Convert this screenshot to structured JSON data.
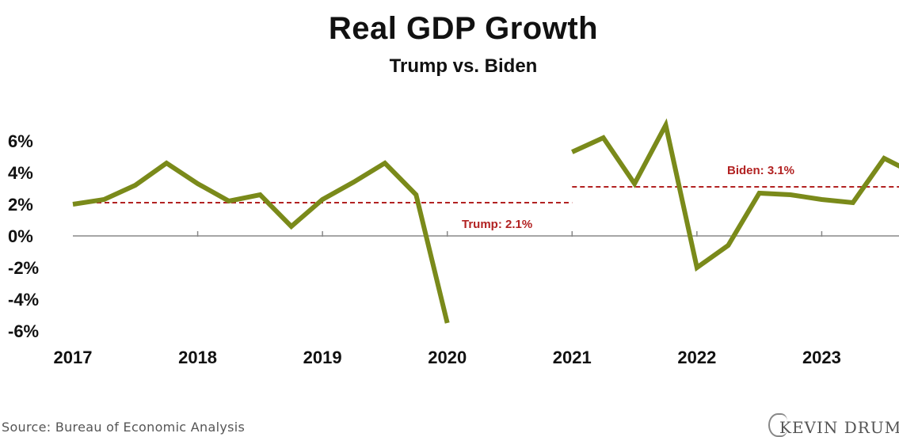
{
  "chart_data": {
    "type": "line",
    "title": "Real GDP Growth",
    "subtitle": "Trump vs. Biden",
    "xlabel": "",
    "ylabel": "",
    "x_ticks": [
      "2017",
      "2018",
      "2019",
      "2020",
      "2021",
      "2022",
      "2023"
    ],
    "y_ticks": [
      "6%",
      "4%",
      "2%",
      "0%",
      "-2%",
      "-4%",
      "-6%"
    ],
    "ylim": [
      -6,
      6
    ],
    "xlim": [
      2017,
      2024
    ],
    "grid": false,
    "series": [
      {
        "name": "",
        "color": "#7a8a1a",
        "segments": [
          {
            "x": [
              2017.0,
              2017.25,
              2017.5,
              2017.75,
              2018.0,
              2018.25,
              2018.5,
              2018.75,
              2019.0,
              2019.25,
              2019.5,
              2019.75,
              2020.0
            ],
            "y": [
              2.0,
              2.3,
              3.2,
              4.6,
              3.3,
              2.2,
              2.6,
              0.6,
              2.3,
              3.4,
              4.6,
              2.6,
              -5.5
            ]
          },
          {
            "x": [
              2021.0,
              2021.25,
              2021.5,
              2021.75,
              2022.0,
              2022.25,
              2022.5,
              2022.75,
              2023.0,
              2023.25,
              2023.5,
              2023.75
            ],
            "y": [
              5.3,
              6.2,
              3.3,
              7.0,
              -2.0,
              -0.6,
              2.7,
              2.6,
              2.3,
              2.1,
              4.9,
              3.9
            ]
          }
        ]
      }
    ],
    "reference_lines": [
      {
        "label": "Trump: 2.1%",
        "value": 2.1,
        "x_start": 2017,
        "x_end": 2021,
        "color": "#b22222"
      },
      {
        "label": "Biden: 3.1%",
        "value": 3.1,
        "x_start": 2021,
        "x_end": 2024,
        "color": "#b22222"
      }
    ]
  },
  "footer": {
    "source": "Source: Bureau of Economic Analysis",
    "logo": "KEVIN DRUM"
  }
}
